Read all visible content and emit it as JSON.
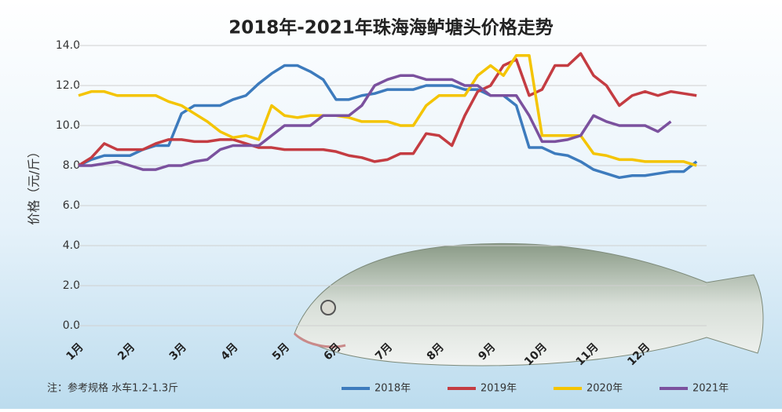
{
  "chart_data": {
    "type": "line",
    "title": "2018年-2021年珠海海鲈塘头价格走势",
    "y_label": "价格（元/斤）",
    "note": "注：参考规格  水车1.2-1.3斤",
    "categories": [
      "1月",
      null,
      null,
      null,
      "2月",
      null,
      null,
      null,
      "3月",
      null,
      null,
      null,
      "4月",
      null,
      null,
      null,
      "5月",
      null,
      null,
      null,
      "6月",
      null,
      null,
      null,
      "7月",
      null,
      null,
      null,
      "8月",
      null,
      null,
      null,
      "9月",
      null,
      null,
      null,
      "10月",
      null,
      null,
      null,
      "11月",
      null,
      null,
      null,
      "12月",
      null,
      null,
      null,
      null
    ],
    "ylim": [
      0,
      14
    ],
    "yticks": [
      {
        "value": 0,
        "label": "0.0"
      },
      {
        "value": 2,
        "label": "2.0"
      },
      {
        "value": 4,
        "label": "4.0"
      },
      {
        "value": 6,
        "label": "6.0"
      },
      {
        "value": 8,
        "label": "8.0"
      },
      {
        "value": 10,
        "label": "10.0"
      },
      {
        "value": 12,
        "label": "12.0"
      },
      {
        "value": 14,
        "label": "14.0"
      }
    ],
    "grid": true,
    "legend": "bottom",
    "series": [
      {
        "name": "2018年",
        "color": "#3d7bbd",
        "values": [
          8.0,
          8.3,
          8.5,
          8.5,
          8.5,
          8.8,
          9.0,
          9.0,
          10.6,
          11.0,
          11.0,
          11.0,
          11.3,
          11.5,
          12.1,
          12.6,
          13.0,
          13.0,
          12.7,
          12.3,
          11.3,
          11.3,
          11.5,
          11.6,
          11.8,
          11.8,
          11.8,
          12.0,
          12.0,
          12.0,
          11.8,
          11.8,
          11.5,
          11.5,
          11.0,
          8.9,
          8.9,
          8.6,
          8.5,
          8.2,
          7.8,
          7.6,
          7.4,
          7.5,
          7.5,
          7.6,
          7.7,
          7.7,
          8.2
        ]
      },
      {
        "name": "2019年",
        "color": "#c43c42",
        "values": [
          8.0,
          8.4,
          9.1,
          8.8,
          8.8,
          8.8,
          9.1,
          9.3,
          9.3,
          9.2,
          9.2,
          9.3,
          9.3,
          9.1,
          8.9,
          8.9,
          8.8,
          8.8,
          8.8,
          8.8,
          8.7,
          8.5,
          8.4,
          8.2,
          8.3,
          8.6,
          8.6,
          9.6,
          9.5,
          9.0,
          10.5,
          11.7,
          12.0,
          13.0,
          13.3,
          11.5,
          11.8,
          13.0,
          13.0,
          13.6,
          12.5,
          12.0,
          11.0,
          11.5,
          11.7,
          11.5,
          11.7,
          11.6,
          11.5
        ]
      },
      {
        "name": "2020年",
        "color": "#f4c400",
        "values": [
          11.5,
          11.7,
          11.7,
          11.5,
          11.5,
          11.5,
          11.5,
          11.2,
          11.0,
          10.6,
          10.2,
          9.7,
          9.4,
          9.5,
          9.3,
          11.0,
          10.5,
          10.4,
          10.5,
          10.5,
          10.5,
          10.4,
          10.2,
          10.2,
          10.2,
          10.0,
          10.0,
          11.0,
          11.5,
          11.5,
          11.5,
          12.5,
          13.0,
          12.5,
          13.5,
          13.5,
          9.5,
          9.5,
          9.5,
          9.5,
          8.6,
          8.5,
          8.3,
          8.3,
          8.2,
          8.2,
          8.2,
          8.2,
          8.0
        ]
      },
      {
        "name": "2021年",
        "color": "#7b519e",
        "values": [
          8.0,
          8.0,
          8.1,
          8.2,
          8.0,
          7.8,
          7.8,
          8.0,
          8.0,
          8.2,
          8.3,
          8.8,
          9.0,
          9.0,
          9.0,
          9.5,
          10.0,
          10.0,
          10.0,
          10.5,
          10.5,
          10.5,
          11.0,
          12.0,
          12.3,
          12.5,
          12.5,
          12.3,
          12.3,
          12.3,
          12.0,
          12.0,
          11.5,
          11.5,
          11.5,
          10.5,
          9.2,
          9.2,
          9.3,
          9.5,
          10.5,
          10.2,
          10.0,
          10.0,
          10.0,
          9.7,
          10.2,
          null,
          null
        ]
      }
    ]
  }
}
